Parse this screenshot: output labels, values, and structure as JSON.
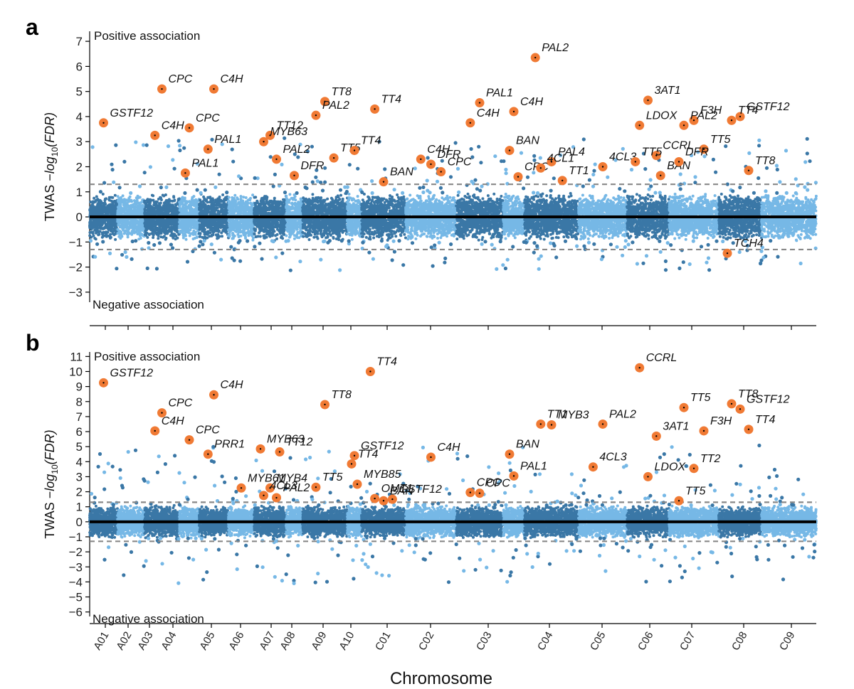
{
  "figure": {
    "panel_a_letter": "a",
    "panel_b_letter": "b",
    "xlabel": "Chromosome",
    "colors": {
      "dark": "#3a77a6",
      "light": "#76b8e6",
      "hit": "#f07a34",
      "threshold": "#888888",
      "axis": "#000000"
    }
  },
  "chart_data": [
    {
      "type": "scatter",
      "title": "",
      "panel": "a",
      "ylabel": "TWAS −log10(FDR)",
      "ylabel_prefix": "TWAS −",
      "ylabel_log": "log",
      "ylabel_sub": "10",
      "ylabel_arg": "(FDR)",
      "positive_label": "Positive association",
      "negative_label": "Negative association",
      "ylim": [
        -3.4,
        7.4
      ],
      "yticks": [
        -3,
        -2,
        -1,
        0,
        1,
        2,
        3,
        4,
        5,
        6,
        7
      ],
      "threshold": 1.3,
      "x": "chromosome position index",
      "annotated_genes": [
        {
          "label": "GSTF12",
          "chr": "A01",
          "y": 3.75
        },
        {
          "label": "CPC",
          "chr": "A03",
          "y": 5.1
        },
        {
          "label": "C4H",
          "chr": "A03",
          "y": 3.25
        },
        {
          "label": "C4H",
          "chr": "A05",
          "y": 5.1
        },
        {
          "label": "CPC",
          "chr": "A04",
          "y": 3.55
        },
        {
          "label": "PAL1",
          "chr": "A05",
          "y": 2.7
        },
        {
          "label": "PAL1",
          "chr": "A04",
          "y": 1.75
        },
        {
          "label": "TT12",
          "chr": "A07",
          "y": 3.25
        },
        {
          "label": "MYB63",
          "chr": "A07",
          "y": 3.0
        },
        {
          "label": "PAL2",
          "chr": "A07",
          "y": 2.3
        },
        {
          "label": "TT8",
          "chr": "A09",
          "y": 4.6
        },
        {
          "label": "PAL2",
          "chr": "A09",
          "y": 4.05
        },
        {
          "label": "TT5",
          "chr": "A09",
          "y": 2.35
        },
        {
          "label": "DFR",
          "chr": "A08",
          "y": 1.65
        },
        {
          "label": "TT4",
          "chr": "A10",
          "y": 2.65
        },
        {
          "label": "BAN",
          "chr": "C01",
          "y": 1.4
        },
        {
          "label": "TT4",
          "chr": "C01",
          "y": 4.3
        },
        {
          "label": "DFR",
          "chr": "C02",
          "y": 2.1
        },
        {
          "label": "C4H",
          "chr": "C02",
          "y": 2.3
        },
        {
          "label": "CPC",
          "chr": "C02",
          "y": 1.8
        },
        {
          "label": "PAL1",
          "chr": "C03",
          "y": 4.55
        },
        {
          "label": "C4H",
          "chr": "C04",
          "y": 4.2
        },
        {
          "label": "C4H",
          "chr": "C03",
          "y": 3.75
        },
        {
          "label": "BAN",
          "chr": "C04",
          "y": 2.65
        },
        {
          "label": "CPC",
          "chr": "C04",
          "y": 1.6
        },
        {
          "label": "PAL4",
          "chr": "C05",
          "y": 2.2
        },
        {
          "label": "4CL1",
          "chr": "C05",
          "y": 1.95
        },
        {
          "label": "TT1",
          "chr": "C05",
          "y": 1.45
        },
        {
          "label": "PAL2",
          "chr": "C05",
          "y": 6.35
        },
        {
          "label": "4CL3",
          "chr": "C06",
          "y": 2.0
        },
        {
          "label": "3AT1",
          "chr": "C07",
          "y": 4.65
        },
        {
          "label": "F3H",
          "chr": "C08",
          "y": 3.85
        },
        {
          "label": "LDOX",
          "chr": "C07",
          "y": 3.65
        },
        {
          "label": "PAL2",
          "chr": "C08",
          "y": 3.65
        },
        {
          "label": "CCRL",
          "chr": "C07",
          "y": 2.45
        },
        {
          "label": "TT5",
          "chr": "C07",
          "y": 2.2
        },
        {
          "label": "BAN",
          "chr": "C07",
          "y": 1.65
        },
        {
          "label": "TT5",
          "chr": "C08",
          "y": 2.7
        },
        {
          "label": "DFR",
          "chr": "C08",
          "y": 2.2
        },
        {
          "label": "GSTF12",
          "chr": "C09",
          "y": 4.0
        },
        {
          "label": "TT4",
          "chr": "C09",
          "y": 3.85
        },
        {
          "label": "TT8",
          "chr": "C09",
          "y": 1.85
        },
        {
          "label": "TCH4",
          "chr": "C09",
          "y": -1.45
        }
      ]
    },
    {
      "type": "scatter",
      "title": "",
      "panel": "b",
      "ylabel": "TWAS −log10(FDR)",
      "ylabel_prefix": "TWAS −",
      "ylabel_log": "log",
      "ylabel_sub": "10",
      "ylabel_arg": "(FDR)",
      "positive_label": "Positive association",
      "negative_label": "Negative association",
      "ylim": [
        -6.3,
        11.3
      ],
      "yticks": [
        -6,
        -5,
        -4,
        -3,
        -2,
        -1,
        0,
        1,
        2,
        3,
        4,
        5,
        6,
        7,
        8,
        9,
        10,
        11
      ],
      "threshold": 1.3,
      "x": "chromosome position index",
      "annotated_genes": [
        {
          "label": "GSTF12",
          "chr": "A01",
          "y": 9.25
        },
        {
          "label": "C4H",
          "chr": "A05",
          "y": 8.45
        },
        {
          "label": "CPC",
          "chr": "A03",
          "y": 7.25
        },
        {
          "label": "C4H",
          "chr": "A03",
          "y": 6.05
        },
        {
          "label": "CPC",
          "chr": "A04",
          "y": 5.45
        },
        {
          "label": "PRR1",
          "chr": "A05",
          "y": 4.5
        },
        {
          "label": "MYB61",
          "chr": "A06",
          "y": 2.25
        },
        {
          "label": "MYB4",
          "chr": "A07",
          "y": 2.25
        },
        {
          "label": "4CL3",
          "chr": "A07",
          "y": 1.75
        },
        {
          "label": "PAL2",
          "chr": "A07",
          "y": 1.6
        },
        {
          "label": "MYB63",
          "chr": "A07",
          "y": 4.85
        },
        {
          "label": "TT12",
          "chr": "A07",
          "y": 4.65
        },
        {
          "label": "TT8",
          "chr": "A09",
          "y": 7.8
        },
        {
          "label": "TT5",
          "chr": "A09",
          "y": 2.3
        },
        {
          "label": "GSTF12",
          "chr": "A10",
          "y": 4.4
        },
        {
          "label": "TT4",
          "chr": "A10",
          "y": 3.85
        },
        {
          "label": "MYB85",
          "chr": "A10",
          "y": 2.5
        },
        {
          "label": "BAN",
          "chr": "C01",
          "y": 1.4
        },
        {
          "label": "OMT1",
          "chr": "C01",
          "y": 1.55
        },
        {
          "label": "GSTF12",
          "chr": "C01",
          "y": 1.5
        },
        {
          "label": "TT4",
          "chr": "C01",
          "y": 10.0
        },
        {
          "label": "C4H",
          "chr": "C02",
          "y": 4.3
        },
        {
          "label": "CPC",
          "chr": "C03",
          "y": 1.9
        },
        {
          "label": "CPC",
          "chr": "C03",
          "y": 1.95
        },
        {
          "label": "PAL1",
          "chr": "C04",
          "y": 3.05
        },
        {
          "label": "BAN",
          "chr": "C04",
          "y": 4.5
        },
        {
          "label": "MYB3",
          "chr": "C05",
          "y": 6.45
        },
        {
          "label": "TT1",
          "chr": "C05",
          "y": 6.5
        },
        {
          "label": "PAL2",
          "chr": "C06",
          "y": 6.5
        },
        {
          "label": "4CL3",
          "chr": "C06",
          "y": 3.65
        },
        {
          "label": "LDOX",
          "chr": "C07",
          "y": 3.0
        },
        {
          "label": "CCRL",
          "chr": "C07",
          "y": 10.25
        },
        {
          "label": "3AT1",
          "chr": "C07",
          "y": 5.7
        },
        {
          "label": "TT2",
          "chr": "C08",
          "y": 3.55
        },
        {
          "label": "TT5",
          "chr": "C08",
          "y": 7.6
        },
        {
          "label": "F3H",
          "chr": "C08",
          "y": 6.05
        },
        {
          "label": "TT5",
          "chr": "C08",
          "y": 1.4
        },
        {
          "label": "GSTF12",
          "chr": "C09",
          "y": 7.5
        },
        {
          "label": "TT8",
          "chr": "C09",
          "y": 7.85
        },
        {
          "label": "TT4",
          "chr": "C09",
          "y": 6.15
        }
      ]
    }
  ],
  "chromosomes": [
    "A01",
    "A02",
    "A03",
    "A04",
    "A05",
    "A06",
    "A07",
    "A08",
    "A09",
    "A10",
    "C01",
    "C02",
    "C03",
    "C04",
    "C05",
    "C06",
    "C07",
    "C08",
    "C09"
  ]
}
